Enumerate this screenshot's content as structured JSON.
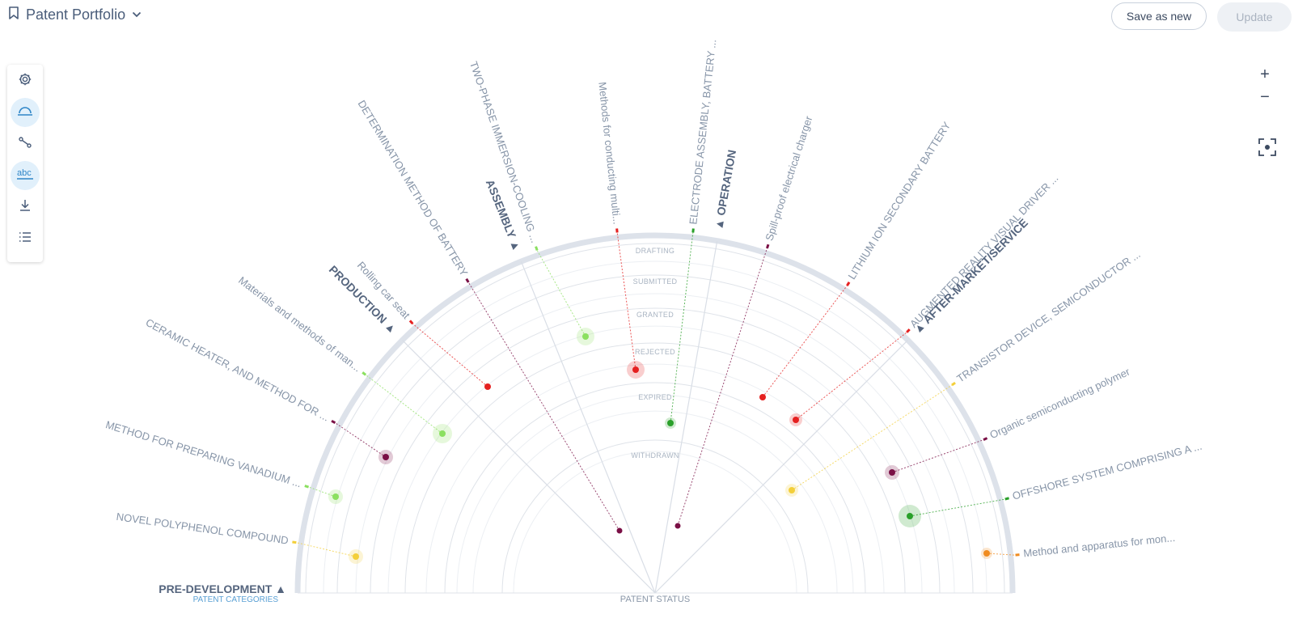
{
  "header": {
    "title": "Patent Portfolio",
    "save_label": "Save as new",
    "update_label": "Update"
  },
  "zoom": {
    "in_label": "+",
    "out_label": "−"
  },
  "toolbar": {
    "items": [
      "settings-icon",
      "radar-view-icon",
      "network-view-icon",
      "labels-toggle-icon",
      "download-icon",
      "list-view-icon"
    ]
  },
  "axis": {
    "status_title": "PATENT STATUS",
    "categories_title": "PATENT CATEGORIES"
  },
  "statuses": [
    "DRAFTING",
    "SUBMITTED",
    "GRANTED",
    "REJECTED",
    "EXPIRED",
    "WITHDRAWN"
  ],
  "categories": [
    "PRE-DEVELOPMENT",
    "PRODUCTION",
    "ASSEMBLY",
    "OPERATION",
    "AFTER-MARKET/SERVICE"
  ],
  "patents": [
    {
      "label": "NOVEL POLYPHENOL COMPOUND",
      "color": "#f3cf3a"
    },
    {
      "label": "METHOD FOR PREPARING VANADIUM ...",
      "color": "#8be060"
    },
    {
      "label": "CERAMIC HEATER, AND METHOD FOR ...",
      "color": "#7a0f45"
    },
    {
      "label": "Materials and methods of man...",
      "color": "#8be060"
    },
    {
      "label": "Rolling car seat",
      "color": "#e52020"
    },
    {
      "label": "DETERMINATION METHOD OF BATTERY",
      "color": "#7a0f45"
    },
    {
      "label": "TWO-PHASE IMMERSION-COOLING ...",
      "color": "#8be060"
    },
    {
      "label": "Methods for conducting multi...",
      "color": "#e52020"
    },
    {
      "label": "ELECTRODE ASSEMBLY, BATTERY ...",
      "color": "#2aa02a"
    },
    {
      "label": "Spill-proof electrical charger",
      "color": "#7a0f45"
    },
    {
      "label": "LITHIUM ION SECONDARY BATTERY",
      "color": "#e52020"
    },
    {
      "label": "AUGMENTED REALITY VISUAL DRIVER ...",
      "color": "#e52020"
    },
    {
      "label": "TRANSISTOR DEVICE, SEMICONDUCTOR ...",
      "color": "#f3cf3a"
    },
    {
      "label": "Organic semiconducting polymer",
      "color": "#7a0f45"
    },
    {
      "label": "OFFSHORE SYSTEM COMPRISING A ...",
      "color": "#2aa02a"
    },
    {
      "label": "Method and apparatus for mon...",
      "color": "#f08c20"
    }
  ]
}
